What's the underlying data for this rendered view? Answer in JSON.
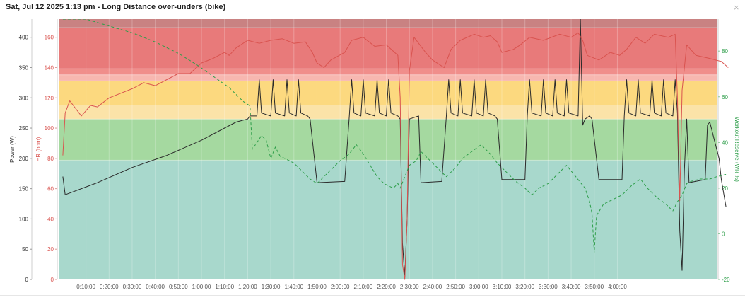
{
  "window": {
    "title": "Sat, Jul 12 2025 1:13 pm - Long Distance over-unders (bike)",
    "close_glyph": "×"
  },
  "chart_data": {
    "type": "line",
    "x_labels": [
      "0:10:00",
      "0:20:00",
      "0:30:00",
      "0:40:00",
      "0:50:00",
      "1:00:00",
      "1:10:00",
      "1:20:00",
      "1:30:00",
      "1:40:00",
      "1:50:00",
      "2:00:00",
      "2:10:00",
      "2:20:00",
      "2:30:00",
      "2:40:00",
      "2:50:00",
      "3:00:00",
      "3:10:00",
      "3:20:00",
      "3:30:00",
      "3:40:00",
      "3:50:00",
      "4:00:00"
    ],
    "x_unit": "minutes",
    "xlim": [
      -1.5,
      283
    ],
    "axes": {
      "power": {
        "label": "Power (W)",
        "ylim": [
          0,
          430
        ],
        "ticks": [
          0,
          50,
          100,
          150,
          200,
          250,
          300,
          350,
          400
        ],
        "color": "#333333"
      },
      "hr": {
        "label": "HR (bpm)",
        "ylim": [
          0,
          172
        ],
        "ticks": [
          0,
          20,
          40,
          60,
          80,
          100,
          120,
          140,
          160
        ],
        "color": "#d9534f"
      },
      "wr": {
        "label": "Workout Reserve (WR %)",
        "ylim": [
          -20,
          94
        ],
        "ticks": [
          -20,
          0,
          20,
          40,
          60,
          80
        ],
        "color": "#2e9e4a"
      }
    },
    "power_zones": [
      {
        "from": 0,
        "to": 197,
        "color": "#a8d8cc"
      },
      {
        "from": 197,
        "to": 265,
        "color": "#a5d9a0"
      },
      {
        "from": 265,
        "to": 288,
        "color": "#fbe3a8"
      },
      {
        "from": 288,
        "to": 328,
        "color": "#fcd97f"
      },
      {
        "from": 328,
        "to": 338,
        "color": "#f7b7b0"
      },
      {
        "from": 338,
        "to": 348,
        "color": "#f08e8b"
      },
      {
        "from": 348,
        "to": 416,
        "color": "#e87a7a"
      },
      {
        "from": 416,
        "to": 430,
        "color": "#c98282"
      }
    ],
    "series": [
      {
        "name": "Power (W)",
        "axis": "power",
        "color": "#2a2a2a",
        "style": "solid",
        "points": [
          [
            0,
            170
          ],
          [
            1,
            140
          ],
          [
            15,
            160
          ],
          [
            30,
            185
          ],
          [
            45,
            205
          ],
          [
            60,
            230
          ],
          [
            70,
            250
          ],
          [
            75,
            260
          ],
          [
            80,
            265
          ],
          [
            81,
            270
          ],
          [
            84,
            270
          ],
          [
            85,
            330
          ],
          [
            86,
            275
          ],
          [
            90,
            270
          ],
          [
            91,
            330
          ],
          [
            92,
            275
          ],
          [
            96,
            270
          ],
          [
            97,
            330
          ],
          [
            98,
            275
          ],
          [
            101,
            270
          ],
          [
            102,
            330
          ],
          [
            103,
            275
          ],
          [
            106,
            270
          ],
          [
            107,
            265
          ],
          [
            110,
            160
          ],
          [
            122,
            162
          ],
          [
            124,
            270
          ],
          [
            125,
            330
          ],
          [
            126,
            275
          ],
          [
            129,
            270
          ],
          [
            130,
            330
          ],
          [
            131,
            275
          ],
          [
            135,
            270
          ],
          [
            136,
            330
          ],
          [
            137,
            275
          ],
          [
            140,
            270
          ],
          [
            141,
            330
          ],
          [
            142,
            275
          ],
          [
            145,
            270
          ],
          [
            146,
            265
          ],
          [
            147,
            60
          ],
          [
            148,
            5
          ],
          [
            149,
            100
          ],
          [
            150,
            265
          ],
          [
            154,
            270
          ],
          [
            155,
            160
          ],
          [
            164,
            162
          ],
          [
            166,
            270
          ],
          [
            167,
            330
          ],
          [
            168,
            275
          ],
          [
            171,
            270
          ],
          [
            172,
            330
          ],
          [
            173,
            275
          ],
          [
            177,
            270
          ],
          [
            178,
            330
          ],
          [
            179,
            275
          ],
          [
            182,
            270
          ],
          [
            183,
            330
          ],
          [
            184,
            275
          ],
          [
            187,
            270
          ],
          [
            188,
            265
          ],
          [
            190,
            165
          ],
          [
            200,
            165
          ],
          [
            201,
            270
          ],
          [
            202,
            330
          ],
          [
            203,
            275
          ],
          [
            207,
            270
          ],
          [
            208,
            330
          ],
          [
            209,
            275
          ],
          [
            212,
            270
          ],
          [
            213,
            330
          ],
          [
            214,
            275
          ],
          [
            217,
            270
          ],
          [
            218,
            330
          ],
          [
            219,
            275
          ],
          [
            223,
            270
          ],
          [
            224,
            430
          ],
          [
            225,
            255
          ],
          [
            226,
            265
          ],
          [
            228,
            270
          ],
          [
            229,
            265
          ],
          [
            232,
            165
          ],
          [
            242,
            165
          ],
          [
            243,
            270
          ],
          [
            244,
            330
          ],
          [
            245,
            275
          ],
          [
            248,
            270
          ],
          [
            249,
            330
          ],
          [
            250,
            275
          ],
          [
            254,
            270
          ],
          [
            255,
            330
          ],
          [
            256,
            275
          ],
          [
            259,
            270
          ],
          [
            260,
            330
          ],
          [
            261,
            275
          ],
          [
            264,
            270
          ],
          [
            265,
            330
          ],
          [
            266,
            275
          ],
          [
            267,
            80
          ],
          [
            268,
            15
          ],
          [
            269,
            180
          ],
          [
            270,
            265
          ],
          [
            271,
            160
          ],
          [
            278,
            165
          ],
          [
            279,
            255
          ],
          [
            280,
            260
          ],
          [
            282,
            230
          ],
          [
            284,
            200
          ],
          [
            285,
            165
          ],
          [
            287,
            120
          ]
        ]
      },
      {
        "name": "HR (bpm)",
        "axis": "hr",
        "color": "#d9534f",
        "style": "solid",
        "points": [
          [
            0,
            82
          ],
          [
            1,
            110
          ],
          [
            3,
            118
          ],
          [
            8,
            108
          ],
          [
            12,
            115
          ],
          [
            15,
            114
          ],
          [
            20,
            120
          ],
          [
            30,
            126
          ],
          [
            35,
            130
          ],
          [
            40,
            128
          ],
          [
            50,
            136
          ],
          [
            55,
            136
          ],
          [
            60,
            143
          ],
          [
            65,
            146
          ],
          [
            70,
            150
          ],
          [
            72,
            148
          ],
          [
            75,
            153
          ],
          [
            80,
            158
          ],
          [
            85,
            156
          ],
          [
            90,
            158
          ],
          [
            95,
            159
          ],
          [
            100,
            156
          ],
          [
            105,
            157
          ],
          [
            108,
            150
          ],
          [
            110,
            143
          ],
          [
            113,
            140
          ],
          [
            116,
            145
          ],
          [
            122,
            150
          ],
          [
            125,
            158
          ],
          [
            130,
            160
          ],
          [
            135,
            154
          ],
          [
            140,
            155
          ],
          [
            145,
            148
          ],
          [
            146,
            120
          ],
          [
            147,
            10
          ],
          [
            148,
            0
          ],
          [
            149,
            40
          ],
          [
            150,
            138
          ],
          [
            152,
            160
          ],
          [
            157,
            150
          ],
          [
            160,
            145
          ],
          [
            165,
            140
          ],
          [
            168,
            152
          ],
          [
            172,
            158
          ],
          [
            178,
            162
          ],
          [
            182,
            160
          ],
          [
            185,
            161
          ],
          [
            188,
            157
          ],
          [
            190,
            150
          ],
          [
            195,
            152
          ],
          [
            198,
            155
          ],
          [
            202,
            160
          ],
          [
            208,
            158
          ],
          [
            215,
            162
          ],
          [
            220,
            160
          ],
          [
            223,
            163
          ],
          [
            225,
            158
          ],
          [
            227,
            148
          ],
          [
            232,
            145
          ],
          [
            237,
            150
          ],
          [
            241,
            148
          ],
          [
            244,
            152
          ],
          [
            248,
            160
          ],
          [
            252,
            156
          ],
          [
            256,
            162
          ],
          [
            262,
            160
          ],
          [
            265,
            162
          ],
          [
            266,
            120
          ],
          [
            267,
            52
          ],
          [
            268,
            125
          ],
          [
            270,
            155
          ],
          [
            274,
            148
          ],
          [
            280,
            146
          ],
          [
            285,
            144
          ],
          [
            288,
            140
          ]
        ]
      },
      {
        "name": "Workout Reserve (WR %)",
        "axis": "wr",
        "color": "#2e9e4a",
        "style": "dashed",
        "points": [
          [
            0,
            94
          ],
          [
            10,
            94
          ],
          [
            20,
            91
          ],
          [
            30,
            88
          ],
          [
            40,
            84
          ],
          [
            50,
            79
          ],
          [
            58,
            74
          ],
          [
            65,
            69
          ],
          [
            72,
            64
          ],
          [
            78,
            58
          ],
          [
            81,
            56
          ],
          [
            82,
            37
          ],
          [
            84,
            40
          ],
          [
            86,
            43
          ],
          [
            88,
            41
          ],
          [
            90,
            33
          ],
          [
            92,
            38
          ],
          [
            94,
            34
          ],
          [
            98,
            32
          ],
          [
            100,
            31
          ],
          [
            103,
            28
          ],
          [
            107,
            24
          ],
          [
            110,
            22
          ],
          [
            115,
            27
          ],
          [
            120,
            32
          ],
          [
            124,
            35
          ],
          [
            127,
            39
          ],
          [
            130,
            35
          ],
          [
            133,
            30
          ],
          [
            136,
            25
          ],
          [
            139,
            22
          ],
          [
            143,
            20
          ],
          [
            145,
            22
          ],
          [
            146,
            20
          ],
          [
            148,
            25
          ],
          [
            150,
            30
          ],
          [
            153,
            32
          ],
          [
            155,
            36
          ],
          [
            157,
            34
          ],
          [
            160,
            31
          ],
          [
            163,
            28
          ],
          [
            166,
            25
          ],
          [
            170,
            29
          ],
          [
            173,
            33
          ],
          [
            177,
            36
          ],
          [
            181,
            39
          ],
          [
            185,
            35
          ],
          [
            188,
            31
          ],
          [
            192,
            27
          ],
          [
            196,
            23
          ],
          [
            200,
            20
          ],
          [
            203,
            17
          ],
          [
            206,
            20
          ],
          [
            210,
            22
          ],
          [
            214,
            26
          ],
          [
            218,
            30
          ],
          [
            222,
            25
          ],
          [
            226,
            20
          ],
          [
            228,
            14
          ],
          [
            229,
            9
          ],
          [
            230,
            -8
          ],
          [
            231,
            8
          ],
          [
            234,
            13
          ],
          [
            238,
            15
          ],
          [
            242,
            17
          ],
          [
            246,
            21
          ],
          [
            250,
            24
          ],
          [
            253,
            20
          ],
          [
            257,
            16
          ],
          [
            261,
            13
          ],
          [
            264,
            10
          ],
          [
            266,
            14
          ],
          [
            268,
            17
          ],
          [
            270,
            22
          ],
          [
            272,
            23
          ],
          [
            276,
            24
          ],
          [
            280,
            24
          ],
          [
            283,
            25
          ],
          [
            287,
            26
          ]
        ]
      }
    ]
  }
}
